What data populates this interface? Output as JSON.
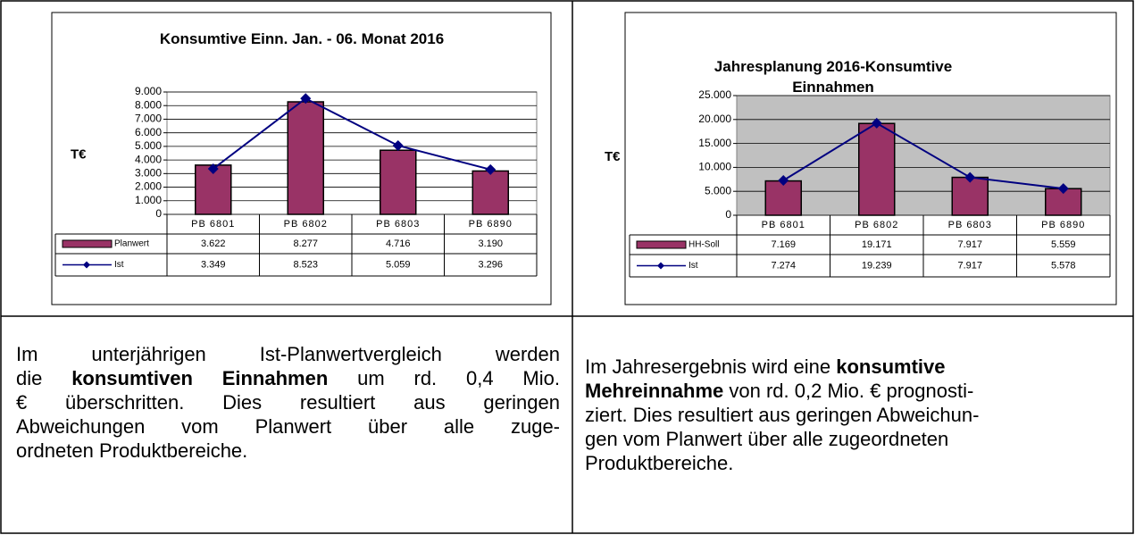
{
  "chart_data": [
    {
      "type": "bar_line",
      "title": "Konsumtive Einn. Jan. - 06. Monat 2016",
      "y_label": "T€",
      "categories": [
        "PB 6801",
        "PB 6802",
        "PB 6803",
        "PB 6890"
      ],
      "series": [
        {
          "name": "Planwert",
          "type": "bar",
          "color": "#993366",
          "values": [
            3622,
            8277,
            4716,
            3190
          ],
          "value_labels": [
            "3.622",
            "8.277",
            "4.716",
            "3.190"
          ]
        },
        {
          "name": "Ist",
          "type": "line",
          "color": "#000080",
          "values": [
            3349,
            8523,
            5059,
            3296
          ],
          "value_labels": [
            "3.349",
            "8.523",
            "5.059",
            "3.296"
          ]
        }
      ],
      "ylim": [
        0,
        9000
      ],
      "yticks": [
        0,
        {
          "value": 1000,
          "label": "1.000"
        },
        {
          "value": 2000,
          "label": "2.000"
        },
        {
          "value": 3000,
          "label": "3.000"
        },
        {
          "value": 4000,
          "label": "4.000"
        },
        {
          "value": 5000,
          "label": "5.000"
        },
        {
          "value": 6000,
          "label": "6.000"
        },
        {
          "value": 7000,
          "label": "7.000"
        },
        {
          "value": 8000,
          "label": "8.000"
        },
        {
          "value": 9000,
          "label": "9.000"
        }
      ],
      "grid": true,
      "plot_background": "#ffffff"
    },
    {
      "type": "bar_line",
      "title": "Jahresplanung 2016-Konsumtive Einnahmen",
      "y_label": "T€",
      "categories": [
        "PB 6801",
        "PB 6802",
        "PB 6803",
        "PB 6890"
      ],
      "series": [
        {
          "name": "HH-Soll",
          "type": "bar",
          "color": "#993366",
          "values": [
            7169,
            19171,
            7917,
            5559
          ],
          "value_labels": [
            "7.169",
            "19.171",
            "7.917",
            "5.559"
          ]
        },
        {
          "name": "Ist",
          "type": "line",
          "color": "#000080",
          "values": [
            7274,
            19239,
            7917,
            5578
          ],
          "value_labels": [
            "7.274",
            "19.239",
            "7.917",
            "5.578"
          ]
        }
      ],
      "ylim": [
        0,
        25000
      ],
      "yticks": [
        0,
        {
          "value": 5000,
          "label": "5.000"
        },
        {
          "value": 10000,
          "label": "10.000"
        },
        {
          "value": 15000,
          "label": "15.000"
        },
        {
          "value": 20000,
          "label": "20.000"
        },
        {
          "value": 25000,
          "label": "25.000"
        }
      ],
      "grid": true,
      "plot_background": "#c0c0c0"
    }
  ],
  "text": {
    "left": [
      [
        {
          "text": "Im unterjährigen Ist-Planwertvergleich werden"
        }
      ],
      [
        {
          "text": "die "
        },
        {
          "text": "konsumtiven Einnahmen",
          "bold": true
        },
        {
          "text": " um rd. 0,4 Mio."
        }
      ],
      [
        {
          "text": "€ überschritten. Dies resultiert aus geringen"
        }
      ],
      [
        {
          "text": "Abweichungen vom Planwert über alle zuge-"
        }
      ],
      [
        {
          "text": "ordneten Produktbereiche."
        }
      ]
    ],
    "right": [
      [
        {
          "text": "Im Jahresergebnis wird eine "
        },
        {
          "text": "konsumtive",
          "bold": true
        }
      ],
      [
        {
          "text": "Mehreinnahme",
          "bold": true
        },
        {
          "text": " von rd. 0,2 Mio. € prognosti-"
        }
      ],
      [
        {
          "text": "ziert. Dies resultiert aus geringen Abweichun-"
        }
      ],
      [
        {
          "text": "gen vom Planwert über alle zugeordneten"
        }
      ],
      [
        {
          "text": "Produktbereiche."
        }
      ]
    ]
  }
}
